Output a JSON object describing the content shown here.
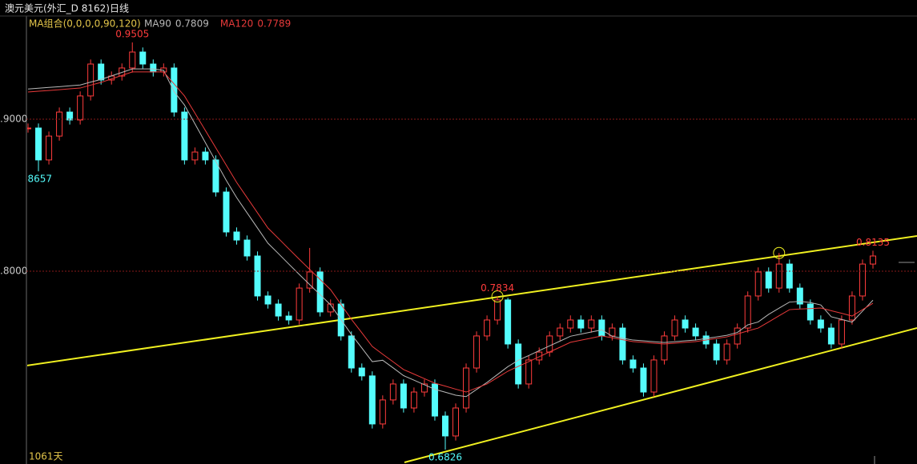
{
  "header": {
    "title": "澳元美元(外汇_D 8162)日线"
  },
  "chart_data": {
    "type": "candlestick",
    "legend_title": "MA组合(0,0,0,0,90,120)",
    "footer": "1061天",
    "up_color": "#ff3c3c",
    "down_color": "#54fcfc",
    "close": [
      0.8942,
      0.8732,
      0.8889,
      0.9047,
      0.8995,
      0.9153,
      0.9363,
      0.9258,
      0.9284,
      0.9337,
      0.9442,
      0.9363,
      0.9311,
      0.9337,
      0.9047,
      0.8732,
      0.8784,
      0.8732,
      0.8521,
      0.8258,
      0.8205,
      0.81,
      0.7837,
      0.7784,
      0.7705,
      0.7679,
      0.7889,
      0.7995,
      0.7732,
      0.7784,
      0.7574,
      0.7363,
      0.7311,
      0.6995,
      0.7153,
      0.7258,
      0.71,
      0.7205,
      0.7258,
      0.7047,
      0.6916,
      0.71,
      0.7363,
      0.7574,
      0.7679,
      0.7811,
      0.7521,
      0.7258,
      0.7416,
      0.7468,
      0.7574,
      0.7626,
      0.7679,
      0.7626,
      0.7679,
      0.7574,
      0.7626,
      0.7416,
      0.7363,
      0.7205,
      0.7416,
      0.7574,
      0.7679,
      0.7626,
      0.7574,
      0.7521,
      0.7416,
      0.7521,
      0.7626,
      0.7837,
      0.7995,
      0.7889,
      0.8047,
      0.7889,
      0.7784,
      0.7679,
      0.7626,
      0.7521,
      0.7679,
      0.7837,
      0.8047,
      0.81
    ],
    "high": [
      0.8972,
      0.8972,
      0.8919,
      0.9077,
      0.9077,
      0.9183,
      0.9393,
      0.9393,
      0.9314,
      0.9367,
      0.9505,
      0.9472,
      0.9393,
      0.9367,
      0.9367,
      0.9077,
      0.8814,
      0.8814,
      0.8762,
      0.8551,
      0.8288,
      0.8235,
      0.813,
      0.7867,
      0.7814,
      0.7735,
      0.7919,
      0.8153,
      0.8025,
      0.7814,
      0.7814,
      0.7604,
      0.7393,
      0.7341,
      0.7183,
      0.7288,
      0.7288,
      0.7235,
      0.7288,
      0.7288,
      0.7077,
      0.713,
      0.7393,
      0.7604,
      0.7709,
      0.7834,
      0.7825,
      0.7551,
      0.7446,
      0.7498,
      0.7604,
      0.7656,
      0.7709,
      0.7709,
      0.7709,
      0.7709,
      0.7656,
      0.7656,
      0.7446,
      0.7393,
      0.7446,
      0.7604,
      0.7709,
      0.7709,
      0.7656,
      0.7604,
      0.7551,
      0.7551,
      0.7656,
      0.7867,
      0.8025,
      0.8025,
      0.812,
      0.8077,
      0.7919,
      0.7814,
      0.7709,
      0.7656,
      0.7709,
      0.7867,
      0.8077,
      0.8135
    ],
    "low": [
      0.8912,
      0.8657,
      0.8702,
      0.8859,
      0.8965,
      0.8965,
      0.9123,
      0.9228,
      0.9228,
      0.9254,
      0.9307,
      0.9333,
      0.9281,
      0.9281,
      0.9017,
      0.8702,
      0.8702,
      0.8702,
      0.8491,
      0.8228,
      0.8175,
      0.807,
      0.7807,
      0.7754,
      0.7675,
      0.7649,
      0.7649,
      0.7859,
      0.7702,
      0.7702,
      0.7544,
      0.7333,
      0.7281,
      0.6965,
      0.6965,
      0.7123,
      0.707,
      0.707,
      0.7175,
      0.7017,
      0.6826,
      0.6886,
      0.707,
      0.7333,
      0.7544,
      0.7649,
      0.7491,
      0.7228,
      0.7228,
      0.7386,
      0.7438,
      0.7544,
      0.7596,
      0.7596,
      0.7596,
      0.7544,
      0.7544,
      0.7386,
      0.7333,
      0.7175,
      0.7175,
      0.7386,
      0.7544,
      0.7596,
      0.7544,
      0.7491,
      0.7386,
      0.7386,
      0.7491,
      0.7596,
      0.7807,
      0.7859,
      0.7859,
      0.7859,
      0.7754,
      0.7649,
      0.7596,
      0.7491,
      0.7491,
      0.7649,
      0.7807,
      0.8017
    ],
    "series": [
      {
        "name": "MA90",
        "color": "#b8b8b8",
        "values": [
          0.9199,
          0.9204,
          0.9209,
          0.9214,
          0.922,
          0.9225,
          0.9244,
          0.9262,
          0.9285,
          0.9308,
          0.9331,
          0.9331,
          0.9331,
          0.9321,
          0.9182,
          0.9093,
          0.897,
          0.8846,
          0.8722,
          0.8598,
          0.8484,
          0.8384,
          0.8284,
          0.8184,
          0.8116,
          0.8047,
          0.7979,
          0.7912,
          0.7846,
          0.7779,
          0.7682,
          0.7584,
          0.7495,
          0.7405,
          0.7414,
          0.7364,
          0.7313,
          0.7283,
          0.7253,
          0.7223,
          0.7204,
          0.7184,
          0.7175,
          0.7222,
          0.7268,
          0.732,
          0.7372,
          0.7414,
          0.7445,
          0.7477,
          0.7509,
          0.754,
          0.7572,
          0.7586,
          0.76,
          0.7614,
          0.7572,
          0.7559,
          0.7547,
          0.7542,
          0.7536,
          0.7531,
          0.7536,
          0.7542,
          0.7547,
          0.7557,
          0.7568,
          0.7578,
          0.7597,
          0.7647,
          0.7666,
          0.7716,
          0.7757,
          0.7797,
          0.7801,
          0.7794,
          0.7778,
          0.77,
          0.7683,
          0.7665,
          0.7737,
          0.7809
        ]
      },
      {
        "name": "MA120",
        "color": "#e83a3a",
        "values": [
          0.9179,
          0.9184,
          0.9189,
          0.9194,
          0.92,
          0.9205,
          0.9224,
          0.9242,
          0.9265,
          0.9288,
          0.9311,
          0.9311,
          0.9311,
          0.9311,
          0.9232,
          0.9153,
          0.904,
          0.8926,
          0.8812,
          0.8698,
          0.8584,
          0.8484,
          0.8384,
          0.8284,
          0.8216,
          0.8147,
          0.8079,
          0.8012,
          0.7946,
          0.7879,
          0.7782,
          0.7684,
          0.7595,
          0.7505,
          0.7454,
          0.7404,
          0.7353,
          0.7323,
          0.7293,
          0.7263,
          0.7244,
          0.7224,
          0.7205,
          0.7232,
          0.7258,
          0.73,
          0.7342,
          0.7374,
          0.7405,
          0.7437,
          0.7469,
          0.75,
          0.7532,
          0.7546,
          0.756,
          0.7574,
          0.7562,
          0.7549,
          0.7537,
          0.7532,
          0.7526,
          0.7521,
          0.7526,
          0.7532,
          0.7537,
          0.7547,
          0.7558,
          0.7568,
          0.7587,
          0.7607,
          0.7626,
          0.7666,
          0.7707,
          0.7747,
          0.7751,
          0.7754,
          0.7758,
          0.774,
          0.7723,
          0.7705,
          0.7747,
          0.7789
        ]
      }
    ],
    "ylim": [
      0.6742,
      0.9679
    ],
    "yticks": [
      {
        "value": 0.8,
        "label": ".8000"
      },
      {
        "value": 0.9,
        "label": ".9000"
      }
    ],
    "grid": true
  }
}
